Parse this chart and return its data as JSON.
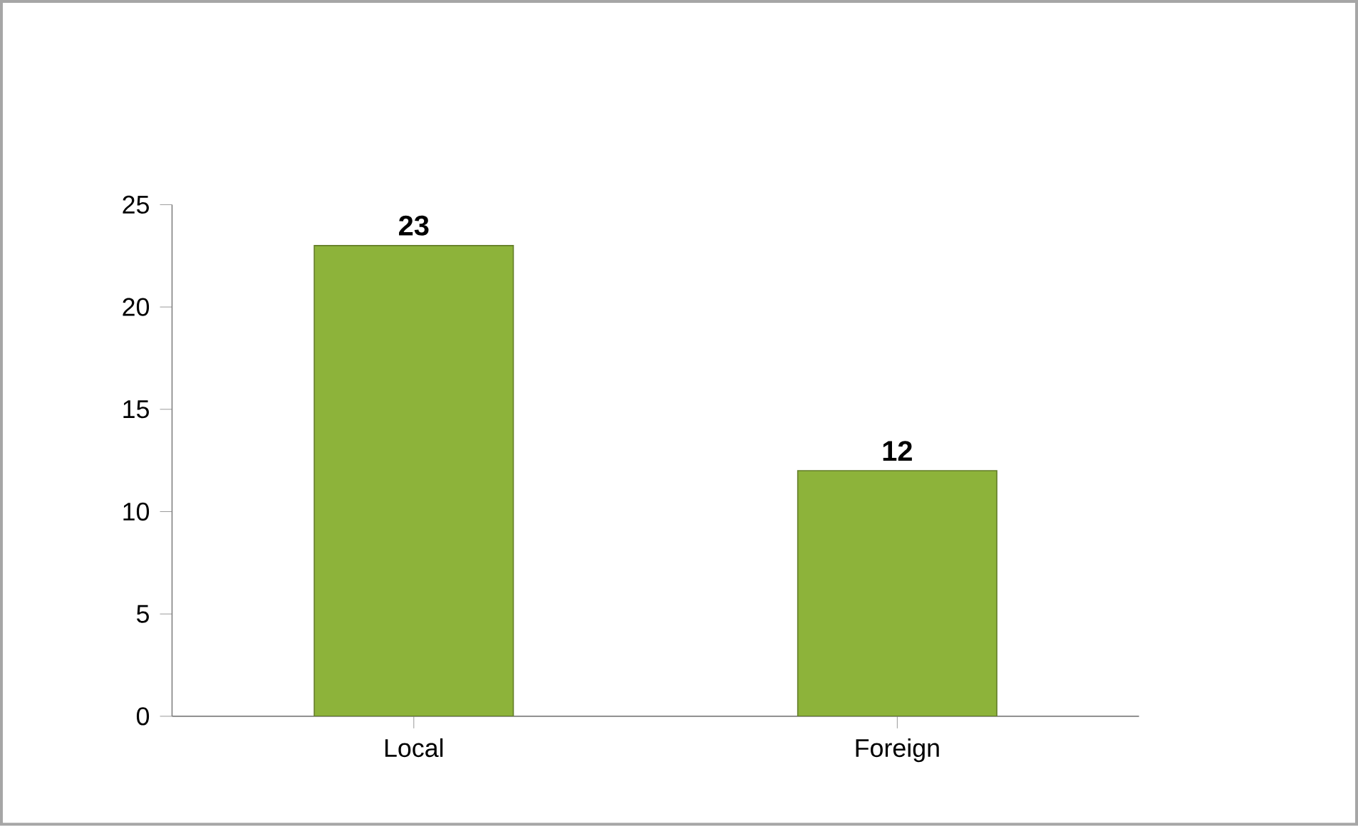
{
  "chart_data": {
    "type": "bar",
    "categories": [
      "Local",
      "Foreign"
    ],
    "values": [
      23,
      12
    ],
    "color": "#8db33a",
    "ylim": [
      0,
      25
    ],
    "yticks": [
      0,
      5,
      10,
      15,
      20,
      25
    ],
    "data_labels": true,
    "grid": false
  }
}
